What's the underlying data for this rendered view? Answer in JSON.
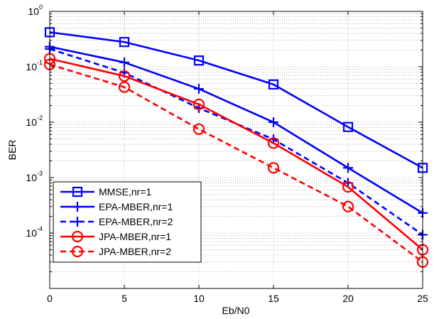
{
  "chart_data": {
    "type": "line",
    "xlabel": "Eb/N0",
    "ylabel": "BER",
    "xlim": [
      0,
      25
    ],
    "ylim": [
      1e-05,
      1
    ],
    "yscale": "log",
    "grid": true,
    "legend_position": "bottom-left",
    "x_ticks": [
      "0",
      "5",
      "10",
      "15",
      "20",
      "25"
    ],
    "y_ticks": [
      {
        "value": 1,
        "base": "10",
        "exp": "0"
      },
      {
        "value": 0.1,
        "base": "10",
        "exp": "-1"
      },
      {
        "value": 0.01,
        "base": "10",
        "exp": "-2"
      },
      {
        "value": 0.001,
        "base": "10",
        "exp": "-3"
      },
      {
        "value": 0.0001,
        "base": "10",
        "exp": "-4"
      }
    ],
    "x": [
      0,
      5,
      10,
      15,
      20,
      25
    ],
    "series": [
      {
        "name": "MMSE,nr=1",
        "color": "#0000ff",
        "dash": "solid",
        "marker": "square",
        "values": [
          0.42,
          0.28,
          0.13,
          0.048,
          0.0082,
          0.0015
        ]
      },
      {
        "name": "EPA-MBER,nr=1",
        "color": "#0000ff",
        "dash": "solid",
        "marker": "plus",
        "values": [
          0.23,
          0.12,
          0.04,
          0.01,
          0.0015,
          0.00023
        ]
      },
      {
        "name": "EPA-MBER,nr=2",
        "color": "#0000ff",
        "dash": "dashed",
        "marker": "plus",
        "values": [
          0.21,
          0.078,
          0.018,
          0.0049,
          0.0008,
          9.3e-05
        ]
      },
      {
        "name": "JPA-MBER,nr=1",
        "color": "#ff0000",
        "dash": "solid",
        "marker": "circle",
        "values": [
          0.14,
          0.068,
          0.021,
          0.0042,
          0.00068,
          5e-05
        ]
      },
      {
        "name": "JPA-MBER,nr=2",
        "color": "#ff0000",
        "dash": "dashed",
        "marker": "circle",
        "values": [
          0.11,
          0.043,
          0.0075,
          0.0015,
          0.0003,
          3e-05
        ]
      }
    ]
  }
}
